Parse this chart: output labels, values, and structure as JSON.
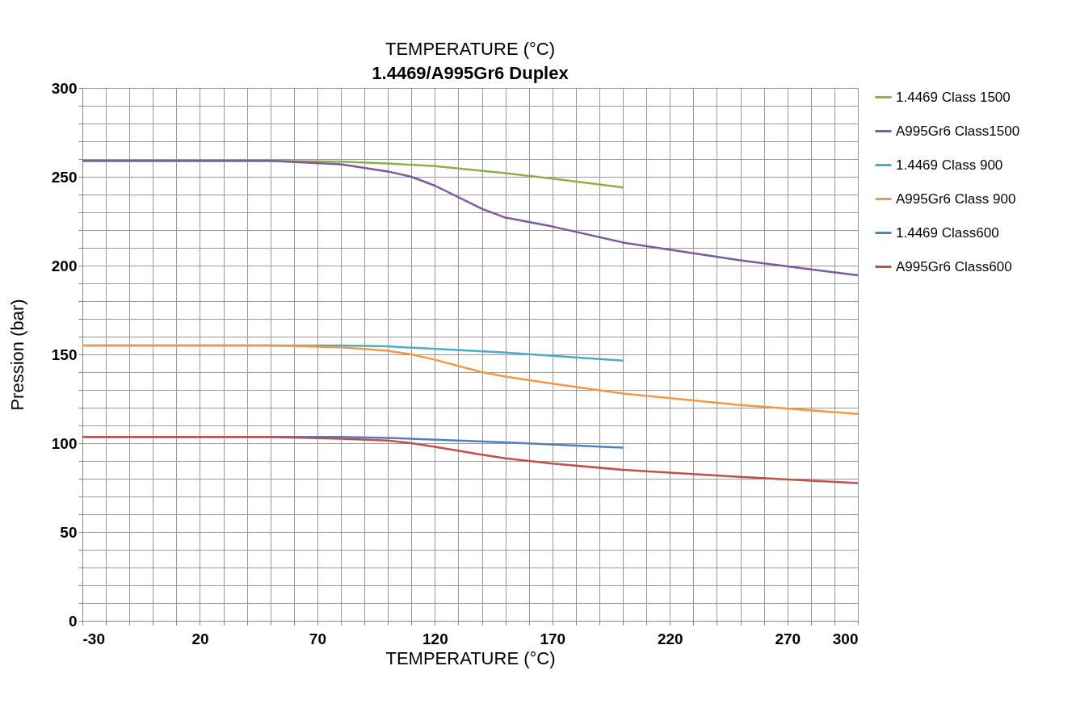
{
  "chart_data": {
    "type": "line",
    "title": "1.4469/A995Gr6  Duplex",
    "xlabel": "TEMPERATURE (°C)",
    "ylabel": "Pression (bar)",
    "annotations": [
      "TEMPERATURE (°C)"
    ],
    "xlim": [
      -30,
      300
    ],
    "ylim": [
      0,
      300
    ],
    "xticks": [
      -30,
      {
        "value": -20,
        "label": null
      },
      {
        "value": -10,
        "label": null
      },
      {
        "value": 0,
        "label": null
      },
      {
        "value": 10,
        "label": null
      },
      20,
      {
        "value": 30,
        "label": null
      },
      {
        "value": 40,
        "label": null
      },
      {
        "value": 50,
        "label": null
      },
      {
        "value": 60,
        "label": null
      },
      70,
      {
        "value": 80,
        "label": null
      },
      {
        "value": 90,
        "label": null
      },
      {
        "value": 100,
        "label": null
      },
      {
        "value": 110,
        "label": null
      },
      120,
      {
        "value": 130,
        "label": null
      },
      {
        "value": 140,
        "label": null
      },
      {
        "value": 150,
        "label": null
      },
      {
        "value": 160,
        "label": null
      },
      170,
      {
        "value": 180,
        "label": null
      },
      {
        "value": 190,
        "label": null
      },
      {
        "value": 200,
        "label": null
      },
      {
        "value": 210,
        "label": null
      },
      220,
      {
        "value": 230,
        "label": null
      },
      {
        "value": 240,
        "label": null
      },
      {
        "value": 250,
        "label": null
      },
      {
        "value": 260,
        "label": null
      },
      270,
      {
        "value": 280,
        "label": null
      },
      {
        "value": 290,
        "label": null
      },
      300
    ],
    "yticks": [
      0,
      {
        "value": 10,
        "label": null
      },
      {
        "value": 20,
        "label": null
      },
      {
        "value": 30,
        "label": null
      },
      {
        "value": 40,
        "label": null
      },
      50,
      {
        "value": 60,
        "label": null
      },
      {
        "value": 70,
        "label": null
      },
      {
        "value": 80,
        "label": null
      },
      {
        "value": 90,
        "label": null
      },
      100,
      {
        "value": 110,
        "label": null
      },
      {
        "value": 120,
        "label": null
      },
      {
        "value": 130,
        "label": null
      },
      {
        "value": 140,
        "label": null
      },
      150,
      {
        "value": 160,
        "label": null
      },
      {
        "value": 170,
        "label": null
      },
      {
        "value": 180,
        "label": null
      },
      {
        "value": 190,
        "label": null
      },
      200,
      {
        "value": 210,
        "label": null
      },
      {
        "value": 220,
        "label": null
      },
      {
        "value": 230,
        "label": null
      },
      {
        "value": 240,
        "label": null
      },
      250,
      {
        "value": 260,
        "label": null
      },
      {
        "value": 270,
        "label": null
      },
      {
        "value": 280,
        "label": null
      },
      {
        "value": 290,
        "label": null
      },
      300
    ],
    "grid": true,
    "legend": "top right",
    "marker": "none",
    "line_style": "solid",
    "series": [
      {
        "name": "1.4469 Class 1500",
        "color": "#8db14a",
        "x": [
          -30,
          50,
          80,
          100,
          120,
          150,
          170,
          200
        ],
        "values": [
          259,
          259,
          258.5,
          257.5,
          256,
          252,
          249,
          244
        ]
      },
      {
        "name": "A995Gr6 Class1500",
        "color": "#7c59a0",
        "x": [
          -30,
          50,
          80,
          100,
          110,
          120,
          140,
          150,
          170,
          200,
          250,
          300
        ],
        "values": [
          259,
          259,
          257,
          253,
          250,
          245,
          232,
          227,
          222,
          213,
          203,
          194.5
        ]
      },
      {
        "name": "1.4469 Class 900",
        "color": "#4bacc6",
        "x": [
          -30,
          50,
          80,
          100,
          150,
          200
        ],
        "values": [
          155,
          155,
          155,
          154.5,
          151,
          146.5
        ]
      },
      {
        "name": "A995Gr6 Class 900",
        "color": "#f79646",
        "x": [
          -30,
          50,
          80,
          100,
          110,
          120,
          140,
          150,
          170,
          200,
          250,
          300
        ],
        "values": [
          155,
          155,
          154,
          152,
          150,
          147,
          140,
          137.5,
          133.5,
          128,
          121.5,
          116.5
        ]
      },
      {
        "name": "1.4469 Class600",
        "color": "#4f81bd",
        "x": [
          -30,
          50,
          80,
          100,
          150,
          200
        ],
        "values": [
          103.5,
          103.5,
          103.5,
          103,
          100.5,
          97.5
        ]
      },
      {
        "name": "A995Gr6 Class600",
        "color": "#c0504d",
        "x": [
          -30,
          50,
          80,
          100,
          110,
          120,
          140,
          150,
          170,
          200,
          250,
          300
        ],
        "values": [
          103.5,
          103.5,
          102.5,
          101.5,
          100,
          98,
          93.5,
          91.5,
          88.5,
          85,
          81,
          77.5
        ]
      }
    ]
  }
}
